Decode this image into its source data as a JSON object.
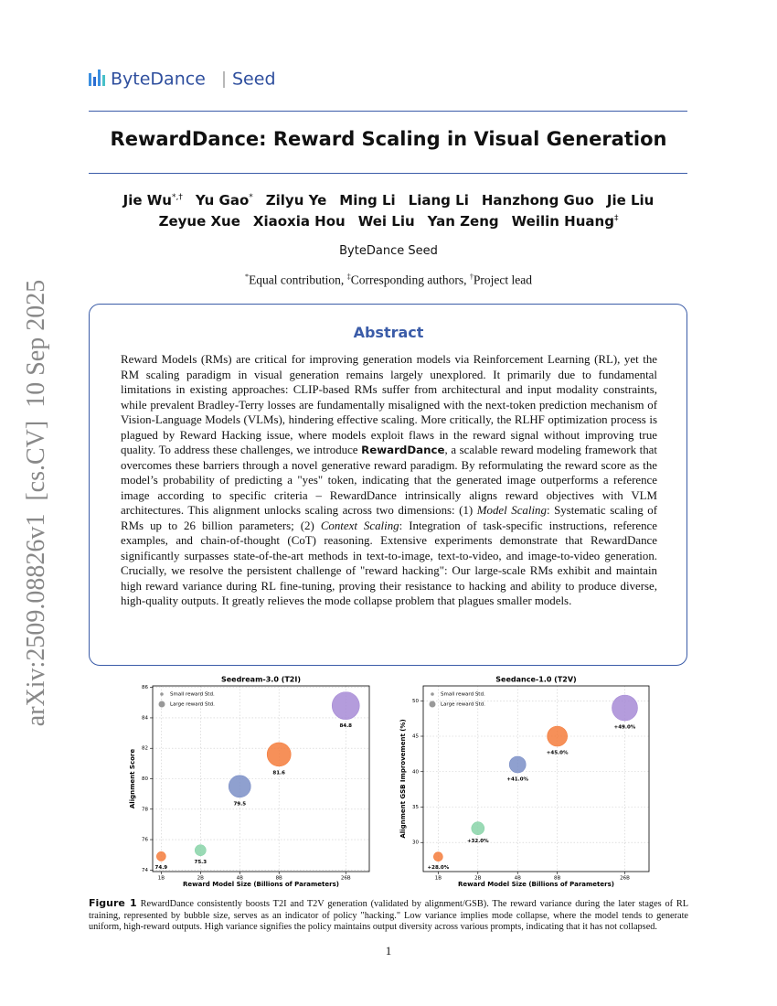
{
  "header": {
    "logo": "ByteDance",
    "logo_sub": "Seed"
  },
  "title": "RewardDance: Reward Scaling in Visual Generation",
  "authors": [
    [
      {
        "name": "Jie Wu",
        "mark": "*,†"
      },
      {
        "name": "Yu Gao",
        "mark": "*"
      },
      {
        "name": "Zilyu Ye"
      },
      {
        "name": "Ming Li"
      },
      {
        "name": "Liang Li"
      },
      {
        "name": "Hanzhong Guo"
      },
      {
        "name": "Jie Liu"
      }
    ],
    [
      {
        "name": "Zeyue Xue"
      },
      {
        "name": "Xiaoxia Hou"
      },
      {
        "name": "Wei Liu"
      },
      {
        "name": "Yan Zeng"
      },
      {
        "name": "Weilin Huang",
        "mark": "‡"
      }
    ]
  ],
  "affiliation": "ByteDance Seed",
  "notes": [
    {
      "mark": "*",
      "text": "Equal contribution,"
    },
    {
      "mark": "‡",
      "text": "Corresponding authors,"
    },
    {
      "mark": "†",
      "text": "Project lead"
    }
  ],
  "abstract": {
    "heading": "Abstract",
    "segments": [
      {
        "text": "Reward Models (RMs) are critical for improving generation models via Reinforcement Learning (RL), yet the RM scaling paradigm in visual generation remains largely unexplored. It primarily due to fundamental limitations in existing approaches: CLIP-based RMs suffer from architectural and input modality constraints, while prevalent Bradley-Terry losses are fundamentally misaligned with the next-token prediction mechanism of Vision-Language Models (VLMs), hindering effective scaling. More critically, the RLHF optimization process is plagued by Reward Hacking issue, where models exploit flaws in the reward signal without improving true quality. To address these challenges, we introduce "
      },
      {
        "text": "RewardDance",
        "style": "bold"
      },
      {
        "text": ", a scalable reward modeling framework that overcomes these barriers through a novel generative reward paradigm. By reformulating the reward score as the model’s probability of predicting a \"yes\" token, indicating that the generated image outperforms a reference image according to specific criteria – RewardDance intrinsically aligns reward objectives with VLM architectures. This alignment unlocks scaling across two dimensions: (1) "
      },
      {
        "text": "Model Scaling",
        "style": "italic"
      },
      {
        "text": ": Systematic scaling of RMs up to 26 billion parameters; (2) "
      },
      {
        "text": "Context Scaling",
        "style": "italic"
      },
      {
        "text": ": Integration of task-specific instructions, reference examples, and chain-of-thought (CoT) reasoning. Extensive experiments demonstrate that RewardDance significantly surpasses state-of-the-art methods in text-to-image, text-to-video, and image-to-video generation. Crucially, we resolve the persistent challenge of \"reward hacking\": Our large-scale RMs exhibit and maintain high reward variance during RL fine-tuning, proving their resistance to hacking and ability to produce diverse, high-quality outputs. It greatly relieves the mode collapse problem that plagues smaller models."
      }
    ]
  },
  "chart_data": [
    {
      "type": "bubble",
      "title": "Seedream-3.0 (T2I)",
      "x_label": "Reward Model Size (Billions of Parameters)",
      "y_label": "Alignment Score",
      "x": [
        1,
        2,
        4,
        8,
        26
      ],
      "xscale": "log",
      "xlim": [
        0.86,
        39.4
      ],
      "xticks": [
        {
          "value": 1,
          "label": "1B"
        },
        {
          "value": 2,
          "label": "2B"
        },
        {
          "value": 4,
          "label": "4B"
        },
        {
          "value": 8,
          "label": "8B"
        },
        {
          "value": 26,
          "label": "26B"
        }
      ],
      "ylim": [
        73.9,
        86.1
      ],
      "yticks": [
        74,
        76,
        78,
        80,
        82,
        84,
        86
      ],
      "values": [
        74.9,
        75.3,
        79.5,
        81.6,
        84.8
      ],
      "sizes": [
        5,
        6,
        12,
        13,
        15
      ],
      "colors": [
        "#f47c3c",
        "#88d4a8",
        "#7b8fc7",
        "#f47c3c",
        "#a78bd6"
      ],
      "legend": [
        "Small reward Std.",
        "Large reward Std."
      ],
      "legend_loc": "upper left",
      "grid": true
    },
    {
      "type": "bubble",
      "title": "Seedance-1.0 (T2V)",
      "x_label": "Reward Model Size (Billions of Parameters)",
      "y_label": "Alignment GSB Improvement (%)",
      "x": [
        1,
        2,
        4,
        8,
        26
      ],
      "xscale": "log",
      "xlim": [
        0.77,
        39.7
      ],
      "xticks": [
        {
          "value": 1,
          "label": "1B"
        },
        {
          "value": 2,
          "label": "2B"
        },
        {
          "value": 4,
          "label": "4B"
        },
        {
          "value": 8,
          "label": "8B"
        },
        {
          "value": 26,
          "label": "26B"
        }
      ],
      "ylim": [
        25.9,
        52.1
      ],
      "yticks": [
        30,
        35,
        40,
        45,
        50
      ],
      "values": [
        28,
        32,
        41,
        45,
        49
      ],
      "value_labels": [
        "+28.0%",
        "+32.0%",
        "+41.0%",
        "+45.0%",
        "+49.0%"
      ],
      "sizes": [
        5,
        7,
        9,
        11,
        14
      ],
      "colors": [
        "#f47c3c",
        "#88d4a8",
        "#7b8fc7",
        "#f47c3c",
        "#a78bd6"
      ],
      "legend": [
        "Small reward Std.",
        "Large reward Std."
      ],
      "legend_loc": "upper left",
      "grid": true
    }
  ],
  "caption": {
    "label": "Figure 1",
    "text": "RewardDance consistently boosts T2I and T2V generation (validated by alignment/GSB). The reward variance during the later stages of RL training, represented by bubble size, serves as an indicator of policy \"hacking.\" Low variance implies mode collapse, where the model tends to generate uniform, high-reward outputs. High variance signifies the policy maintains output diversity across various prompts, indicating that it has not collapsed."
  },
  "page_number": "1",
  "side_label": "arXiv:2509.08826v1  [cs.CV]  10 Sep 2025"
}
